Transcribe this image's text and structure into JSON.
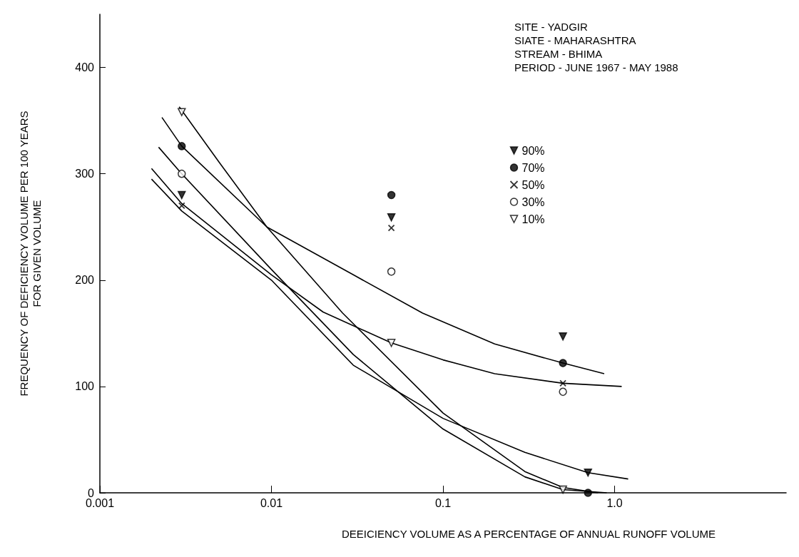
{
  "chart_data": {
    "type": "scatter",
    "xlabel": "DEEICIENCY VOLUME AS A PERCENTAGE OF ANNUAL RUNOFF VOLUME",
    "ylabel": "FREQUENCY OF DEFICIENCY VOLUME PER 100 YEARS\nFOR GIVEN VOLUME",
    "log": "x",
    "xlim": [
      0.001,
      10
    ],
    "xticks": [
      0.001,
      0.01,
      0.1,
      {
        "value": 1,
        "label": "1.0"
      }
    ],
    "ylim": [
      0,
      450
    ],
    "yticks": [
      0,
      100,
      200,
      300,
      400
    ],
    "grid": false,
    "legend": "top right",
    "annotations": [
      "SITE - YADGIR",
      "SIATE - MAHARASHTRA",
      "STREAM - BHIMA",
      "PERIOD - JUNE 1967 - MAY 1988"
    ],
    "series": [
      {
        "name": "90%",
        "color": "#000000",
        "marker": "triangle",
        "x": [
          0.003,
          0.05,
          0.5,
          0.7
        ],
        "values": [
          280,
          259,
          147,
          19
        ]
      },
      {
        "name": "70%",
        "color": "#000000",
        "marker": "circle",
        "x": [
          0.003,
          0.05,
          0.5,
          0.7
        ],
        "values": [
          326,
          280,
          122,
          0
        ]
      },
      {
        "name": "50%",
        "color": "#000000",
        "marker": "cross",
        "x": [
          0.003,
          0.05,
          0.5
        ],
        "values": [
          270,
          249,
          103
        ]
      },
      {
        "name": "30%",
        "color": "#ffffff",
        "marker": "circle",
        "x": [
          0.003,
          0.05,
          0.5
        ],
        "values": [
          300,
          208,
          95
        ]
      },
      {
        "name": "10%",
        "color": "#ffffff",
        "marker": "triangle",
        "x": [
          0.003,
          0.05,
          0.5
        ],
        "values": [
          358,
          141,
          3
        ]
      },
      {
        "type": "line",
        "color": "#000000",
        "marker": "none",
        "x": [
          0.0029,
          0.005,
          0.0094,
          0.026,
          0.1,
          0.3,
          0.5,
          0.8
        ],
        "values": [
          363,
          310,
          250,
          169,
          75,
          20,
          5,
          0
        ]
      },
      {
        "type": "line",
        "color": "#000000",
        "marker": "none",
        "x": [
          0.0023,
          0.003,
          0.0094,
          0.03,
          0.076,
          0.2,
          0.5,
          0.87
        ],
        "values": [
          353,
          326,
          250,
          205,
          169,
          140,
          122,
          112
        ]
      },
      {
        "type": "line",
        "color": "#000000",
        "marker": "none",
        "x": [
          0.002,
          0.003,
          0.01,
          0.02,
          0.05,
          0.1,
          0.2,
          0.5,
          1.1
        ],
        "values": [
          305,
          272,
          205,
          170,
          141,
          125,
          112,
          103,
          100
        ]
      },
      {
        "type": "line",
        "color": "#000000",
        "marker": "none",
        "x": [
          0.002,
          0.003,
          0.01,
          0.03,
          0.1,
          0.3,
          0.7,
          1.2
        ],
        "values": [
          295,
          265,
          200,
          120,
          70,
          38,
          19,
          13
        ]
      },
      {
        "type": "line",
        "color": "#000000",
        "marker": "none",
        "x": [
          0.0022,
          0.003,
          0.01,
          0.03,
          0.1,
          0.3,
          0.5,
          0.9
        ],
        "values": [
          325,
          300,
          210,
          130,
          60,
          15,
          3,
          0
        ]
      }
    ]
  }
}
